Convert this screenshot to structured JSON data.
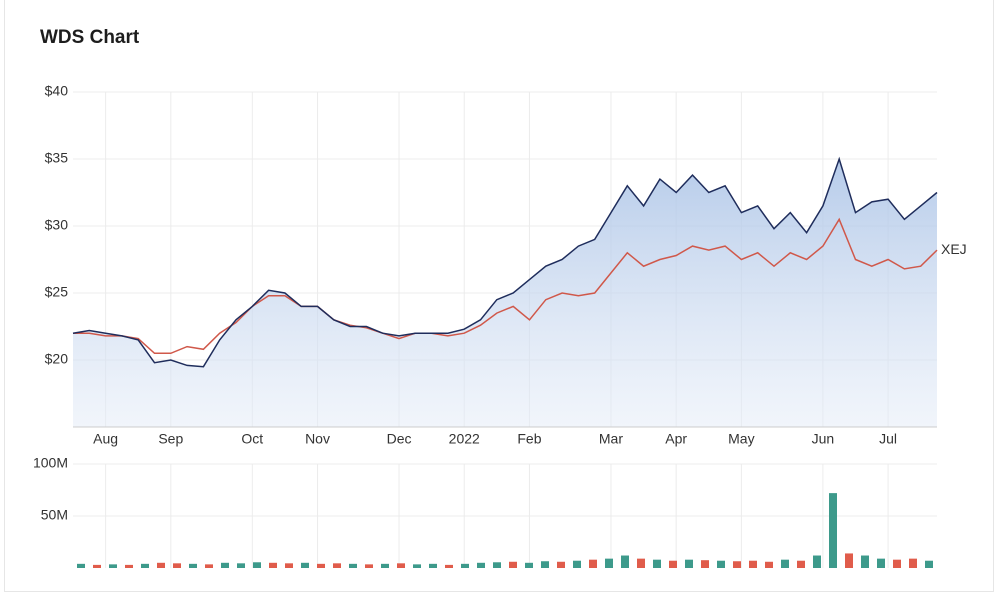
{
  "chart_data": [
    {
      "type": "line",
      "title": "WDS Chart",
      "categories": [
        null,
        null,
        "Aug",
        null,
        null,
        null,
        "Sep",
        null,
        null,
        null,
        null,
        "Oct",
        null,
        null,
        null,
        "Nov",
        null,
        null,
        null,
        null,
        "Dec",
        null,
        null,
        null,
        "2022",
        null,
        null,
        null,
        "Feb",
        null,
        null,
        null,
        null,
        "Mar",
        null,
        null,
        null,
        "Apr",
        null,
        null,
        null,
        "May",
        null,
        null,
        null,
        null,
        "Jun",
        null,
        null,
        null,
        "Jul",
        null,
        null,
        null
      ],
      "series": [
        {
          "color": "#1f2d5c",
          "values": [
            22.0,
            22.2,
            22.0,
            21.8,
            21.5,
            19.8,
            20.0,
            19.6,
            19.5,
            21.5,
            23.0,
            24.0,
            25.2,
            25.0,
            24.0,
            24.0,
            23.0,
            22.5,
            22.5,
            22.0,
            21.8,
            22.0,
            22.0,
            22.0,
            22.3,
            23.0,
            24.5,
            25.0,
            26.0,
            27.0,
            27.5,
            28.5,
            29.0,
            31.0,
            33.0,
            31.5,
            33.5,
            32.5,
            33.8,
            32.5,
            33.0,
            31.0,
            31.5,
            29.8,
            31.0,
            29.5,
            31.5,
            35.0,
            31.0,
            31.8,
            32.0,
            30.5,
            31.5,
            32.5
          ]
        },
        {
          "name": "XEJ",
          "color": "#d0584a",
          "values": [
            22.0,
            22.0,
            21.8,
            21.8,
            21.6,
            20.5,
            20.5,
            21.0,
            20.8,
            22.0,
            22.8,
            24.0,
            24.8,
            24.8,
            24.0,
            24.0,
            23.0,
            22.6,
            22.4,
            22.0,
            21.6,
            22.0,
            22.0,
            21.8,
            22.0,
            22.6,
            23.5,
            24.0,
            23.0,
            24.5,
            25.0,
            24.8,
            25.0,
            26.5,
            28.0,
            27.0,
            27.5,
            27.8,
            28.5,
            28.2,
            28.5,
            27.5,
            28.0,
            27.0,
            28.0,
            27.5,
            28.5,
            30.5,
            27.5,
            27.0,
            27.5,
            26.8,
            27.0,
            28.2
          ]
        }
      ],
      "ylim": [
        15,
        40
      ],
      "yticks": [
        {
          "value": 20,
          "label": "$20"
        },
        {
          "value": 25,
          "label": "$25"
        },
        {
          "value": 30,
          "label": "$30"
        },
        {
          "value": 35,
          "label": "$35"
        },
        {
          "value": 40,
          "label": "$40"
        }
      ],
      "grid": true
    },
    {
      "type": "bar",
      "categories": [
        null,
        null,
        null,
        null,
        null,
        null,
        null,
        null,
        null,
        null,
        null,
        null,
        null,
        null,
        null,
        null,
        null,
        null,
        null,
        null,
        null,
        null,
        null,
        null,
        null,
        null,
        null,
        null,
        null,
        null,
        null,
        null,
        null,
        null,
        null,
        null,
        null,
        null,
        null,
        null,
        null,
        null,
        null,
        null,
        null,
        null,
        null,
        null,
        null,
        null,
        null,
        null,
        null,
        null
      ],
      "values": [
        4000000,
        3000000,
        3500000,
        3000000,
        4000000,
        5000000,
        4500000,
        4000000,
        3500000,
        5000000,
        4500000,
        5500000,
        5000000,
        4500000,
        5000000,
        4000000,
        4500000,
        4000000,
        3500000,
        4000000,
        4500000,
        3500000,
        4000000,
        3000000,
        4000000,
        5000000,
        5500000,
        6000000,
        5000000,
        6500000,
        6000000,
        7000000,
        8000000,
        9000000,
        12000000,
        9000000,
        8000000,
        7000000,
        8000000,
        7500000,
        7000000,
        6500000,
        7000000,
        6000000,
        8000000,
        7000000,
        12000000,
        72000000,
        14000000,
        12000000,
        9000000,
        8000000,
        9000000,
        7000000
      ],
      "colors": [
        "#3d9a8b",
        "#e05c4b",
        "#3d9a8b",
        "#e05c4b",
        "#3d9a8b",
        "#e05c4b",
        "#e05c4b",
        "#3d9a8b",
        "#e05c4b",
        "#3d9a8b",
        "#3d9a8b",
        "#3d9a8b",
        "#e05c4b",
        "#e05c4b",
        "#3d9a8b",
        "#e05c4b",
        "#e05c4b",
        "#3d9a8b",
        "#e05c4b",
        "#3d9a8b",
        "#e05c4b",
        "#3d9a8b",
        "#3d9a8b",
        "#e05c4b",
        "#3d9a8b",
        "#3d9a8b",
        "#3d9a8b",
        "#e05c4b",
        "#3d9a8b",
        "#3d9a8b",
        "#e05c4b",
        "#3d9a8b",
        "#e05c4b",
        "#3d9a8b",
        "#3d9a8b",
        "#e05c4b",
        "#3d9a8b",
        "#e05c4b",
        "#3d9a8b",
        "#e05c4b",
        "#3d9a8b",
        "#e05c4b",
        "#e05c4b",
        "#e05c4b",
        "#3d9a8b",
        "#e05c4b",
        "#3d9a8b",
        "#3d9a8b",
        "#e05c4b",
        "#3d9a8b",
        "#3d9a8b",
        "#e05c4b",
        "#e05c4b",
        "#3d9a8b"
      ],
      "ylim": [
        0,
        100000000
      ],
      "yticks": [
        {
          "value": 50000000,
          "label": "50M"
        },
        {
          "value": 100000000,
          "label": "100M"
        }
      ],
      "grid": true
    }
  ]
}
